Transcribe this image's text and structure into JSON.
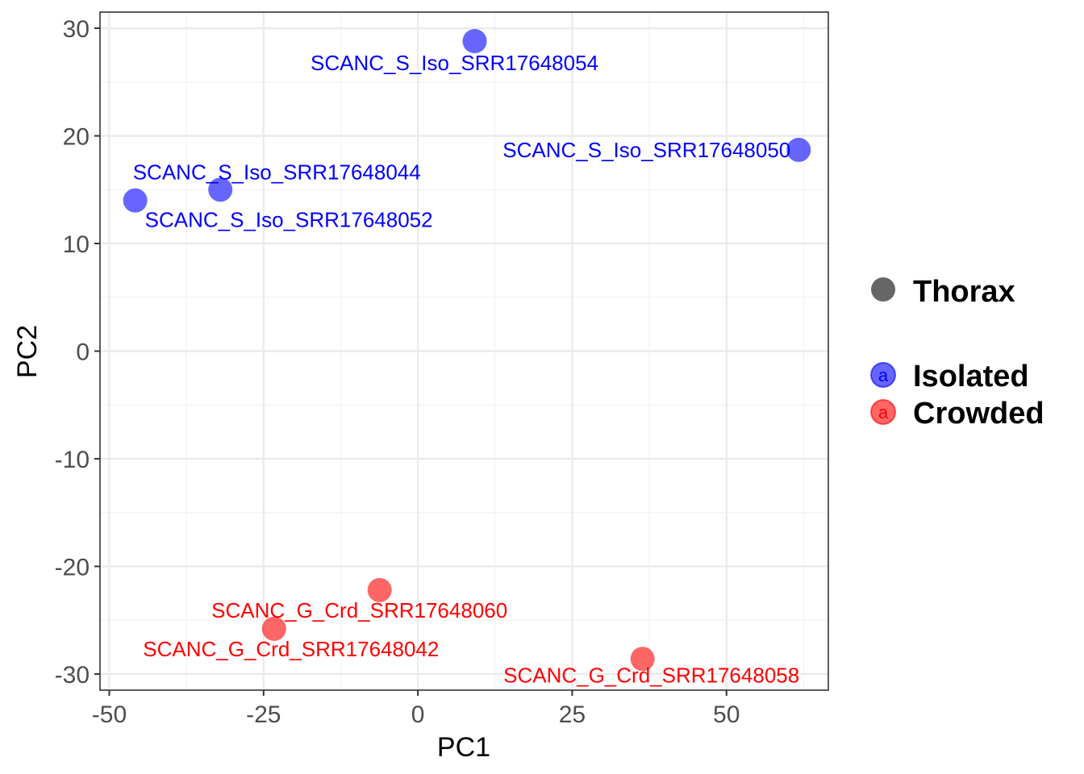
{
  "chart_data": {
    "type": "scatter",
    "xlabel": "PC1",
    "ylabel": "PC2",
    "xlim": [
      -51.5,
      66.5
    ],
    "ylim": [
      -31.5,
      31.5
    ],
    "x_ticks": [
      -50,
      -25,
      0,
      25,
      50
    ],
    "x_tick_labels": [
      "-50",
      "-25",
      "0",
      "25",
      "50"
    ],
    "y_ticks": [
      -30,
      -20,
      -10,
      0,
      10,
      20,
      30
    ],
    "y_tick_labels": [
      "-30",
      "-20",
      "-10",
      "0",
      "10",
      "20",
      "30"
    ],
    "grid": true,
    "legend_position": "right",
    "legend": {
      "shape_entries": [
        {
          "label": "Thorax",
          "color": "#666666"
        }
      ],
      "color_entries": [
        {
          "label": "Isolated",
          "color": "#0000ff",
          "glyph": "a"
        },
        {
          "label": "Crowded",
          "color": "#ff0000",
          "glyph": "a"
        }
      ]
    },
    "series": [
      {
        "name": "Isolated",
        "color": "#0000ff",
        "points": [
          {
            "x": -45.8,
            "y": 14.0,
            "label": "SCANC_S_Iso_SRR17648052"
          },
          {
            "x": -32.0,
            "y": 15.0,
            "label": "SCANC_S_Iso_SRR17648044"
          },
          {
            "x": 9.2,
            "y": 28.8,
            "label": "SCANC_S_Iso_SRR17648054"
          },
          {
            "x": 61.7,
            "y": 18.7,
            "label": "SCANC_S_Iso_SRR17648050"
          }
        ]
      },
      {
        "name": "Crowded",
        "color": "#ff0000",
        "points": [
          {
            "x": -23.3,
            "y": -25.8,
            "label": "SCANC_G_Crd_SRR17648042"
          },
          {
            "x": -6.2,
            "y": -22.2,
            "label": "SCANC_G_Crd_SRR17648060"
          },
          {
            "x": 36.4,
            "y": -28.6,
            "label": "SCANC_G_Crd_SRR17648058"
          }
        ]
      }
    ]
  }
}
